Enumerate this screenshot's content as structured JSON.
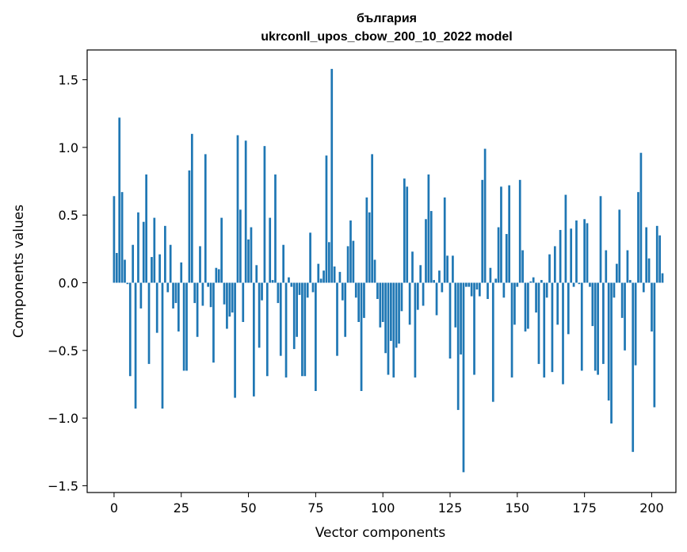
{
  "chart_data": {
    "type": "bar",
    "title": "българия",
    "subtitle": "ukrconll_upos_cbow_200_10_2022 model",
    "xlabel": "Vector components",
    "ylabel": "Components values",
    "xlim": [
      -10,
      209
    ],
    "ylim": [
      -1.55,
      1.72
    ],
    "xticks": [
      0,
      25,
      50,
      75,
      100,
      125,
      150,
      175,
      200
    ],
    "yticks": [
      -1.5,
      -1.0,
      -0.5,
      0.0,
      0.5,
      1.0,
      1.5
    ],
    "ytick_labels": [
      "−1.5",
      "−1.0",
      "−0.5",
      "0.0",
      "0.5",
      "1.0",
      "1.5"
    ],
    "grid": false,
    "bar_color": "#1f77b4",
    "values": [
      0.64,
      0.22,
      1.22,
      0.67,
      0.17,
      -0.01,
      -0.69,
      0.28,
      -0.93,
      0.52,
      -0.19,
      0.45,
      0.8,
      -0.6,
      0.19,
      0.48,
      -0.37,
      0.21,
      -0.93,
      0.42,
      -0.07,
      0.28,
      -0.19,
      -0.15,
      -0.36,
      0.15,
      -0.65,
      -0.65,
      0.83,
      1.1,
      -0.15,
      -0.4,
      0.27,
      -0.17,
      0.95,
      -0.03,
      -0.18,
      -0.59,
      0.11,
      0.1,
      0.48,
      -0.16,
      -0.34,
      -0.25,
      -0.22,
      -0.85,
      1.09,
      0.54,
      -0.29,
      1.05,
      0.32,
      0.41,
      -0.84,
      0.13,
      -0.48,
      -0.13,
      1.01,
      -0.69,
      0.48,
      0.02,
      0.8,
      -0.15,
      -0.54,
      0.28,
      -0.7,
      0.04,
      -0.03,
      -0.49,
      -0.4,
      -0.09,
      -0.69,
      -0.69,
      -0.11,
      0.37,
      -0.07,
      -0.8,
      0.14,
      0.03,
      0.09,
      0.94,
      0.3,
      1.58,
      0.12,
      -0.54,
      0.08,
      -0.13,
      -0.4,
      0.27,
      0.46,
      0.31,
      -0.11,
      -0.29,
      -0.8,
      -0.26,
      0.63,
      0.52,
      0.95,
      0.17,
      -0.12,
      -0.33,
      -0.29,
      -0.52,
      -0.68,
      -0.43,
      -0.7,
      -0.48,
      -0.45,
      -0.21,
      0.77,
      0.71,
      -0.31,
      0.23,
      -0.7,
      -0.2,
      0.13,
      -0.17,
      0.47,
      0.8,
      0.53,
      0.02,
      -0.24,
      0.09,
      -0.07,
      0.63,
      0.2,
      -0.56,
      0.2,
      -0.33,
      -0.94,
      -0.53,
      -1.4,
      -0.03,
      -0.03,
      -0.1,
      -0.68,
      -0.05,
      -0.1,
      0.76,
      0.99,
      -0.12,
      0.11,
      -0.88,
      0.03,
      0.41,
      0.71,
      -0.11,
      0.36,
      0.72,
      -0.7,
      -0.31,
      -0.03,
      0.76,
      0.24,
      -0.36,
      -0.34,
      0.01,
      0.04,
      -0.22,
      -0.6,
      0.02,
      -0.7,
      -0.11,
      0.21,
      -0.66,
      0.27,
      -0.31,
      0.39,
      -0.75,
      0.65,
      -0.38,
      0.4,
      -0.03,
      0.46,
      -0.01,
      -0.65,
      0.47,
      0.44,
      -0.03,
      -0.32,
      -0.65,
      -0.68,
      0.64,
      -0.6,
      0.24,
      -0.87,
      -1.04,
      -0.11,
      0.14,
      0.54,
      -0.26,
      -0.5,
      0.24,
      0.02,
      -1.25,
      -0.61,
      0.67,
      0.96,
      -0.07,
      0.41,
      0.18,
      -0.36,
      -0.92,
      0.42,
      0.35,
      0.07
    ]
  }
}
